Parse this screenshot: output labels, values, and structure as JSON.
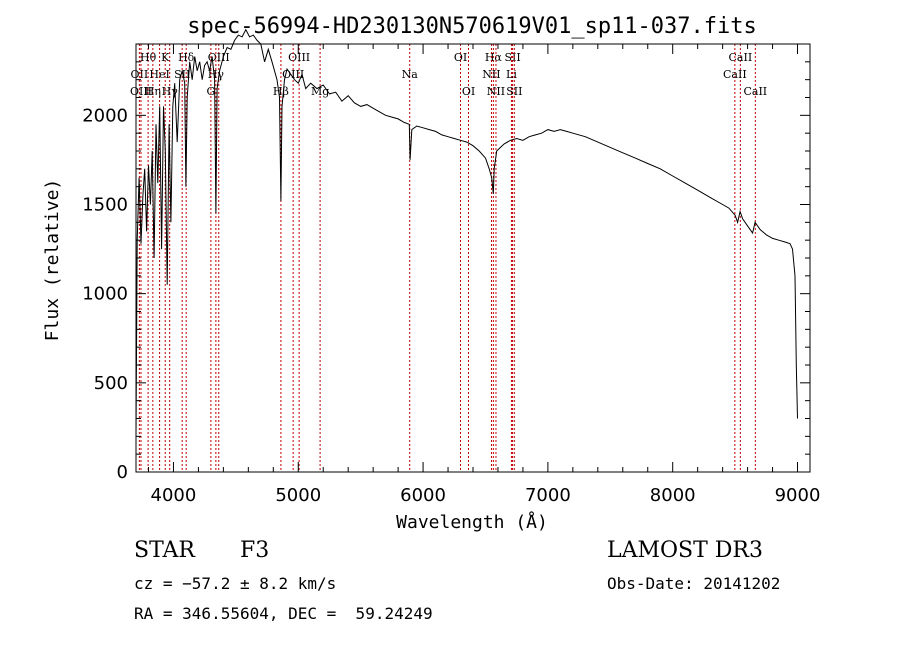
{
  "chart_data": {
    "type": "line",
    "title": "spec-56994-HD230130N570619V01_sp11-037.fits",
    "xlabel": "Wavelength (Å)",
    "ylabel": "Flux (relative)",
    "xlim": [
      3700,
      9100
    ],
    "ylim": [
      0,
      2400
    ],
    "xticks": [
      4000,
      5000,
      6000,
      7000,
      8000,
      9000
    ],
    "yticks": [
      0,
      500,
      1000,
      1500,
      2000
    ],
    "series": [
      {
        "name": "spectrum",
        "x": [
          3700,
          3710,
          3725,
          3740,
          3755,
          3770,
          3785,
          3800,
          3815,
          3830,
          3845,
          3860,
          3875,
          3890,
          3905,
          3920,
          3935,
          3950,
          3965,
          3980,
          3995,
          4010,
          4030,
          4050,
          4070,
          4090,
          4100,
          4110,
          4130,
          4150,
          4170,
          4190,
          4210,
          4230,
          4250,
          4270,
          4290,
          4310,
          4330,
          4340,
          4350,
          4370,
          4400,
          4430,
          4460,
          4490,
          4520,
          4550,
          4580,
          4610,
          4640,
          4670,
          4700,
          4730,
          4760,
          4790,
          4810,
          4830,
          4850,
          4861,
          4870,
          4890,
          4910,
          4940,
          4970,
          5000,
          5030,
          5060,
          5100,
          5150,
          5200,
          5250,
          5300,
          5350,
          5400,
          5450,
          5500,
          5550,
          5600,
          5650,
          5700,
          5750,
          5800,
          5850,
          5890,
          5896,
          5910,
          5950,
          6000,
          6050,
          6100,
          6150,
          6200,
          6250,
          6300,
          6350,
          6400,
          6450,
          6500,
          6530,
          6550,
          6563,
          6570,
          6590,
          6620,
          6650,
          6700,
          6750,
          6800,
          6850,
          6900,
          6950,
          7000,
          7050,
          7100,
          7150,
          7200,
          7300,
          7400,
          7500,
          7600,
          7700,
          7800,
          7900,
          8000,
          8100,
          8200,
          8300,
          8400,
          8450,
          8500,
          8520,
          8540,
          8560,
          8600,
          8640,
          8660,
          8700,
          8750,
          8800,
          8850,
          8900,
          8940,
          8960,
          8980,
          8990,
          9000
        ],
        "y": [
          200,
          1300,
          1650,
          1280,
          1550,
          1700,
          1350,
          1720,
          1500,
          1800,
          1200,
          1950,
          1620,
          2050,
          1250,
          2050,
          1800,
          1050,
          1950,
          1400,
          2050,
          2180,
          1850,
          2200,
          2250,
          2180,
          1600,
          2100,
          2300,
          2200,
          2330,
          2250,
          2300,
          2200,
          2280,
          2300,
          2250,
          2330,
          2200,
          1450,
          2150,
          2250,
          2330,
          2380,
          2370,
          2420,
          2450,
          2440,
          2480,
          2440,
          2450,
          2420,
          2400,
          2300,
          2370,
          2300,
          2250,
          2200,
          2100,
          1520,
          2050,
          2200,
          2260,
          2230,
          2200,
          2180,
          2230,
          2150,
          2180,
          2150,
          2170,
          2120,
          2130,
          2080,
          2110,
          2070,
          2050,
          2060,
          2040,
          2020,
          2000,
          1990,
          1980,
          1960,
          1950,
          1750,
          1920,
          1940,
          1930,
          1920,
          1910,
          1890,
          1880,
          1870,
          1860,
          1850,
          1830,
          1800,
          1760,
          1700,
          1650,
          1560,
          1700,
          1800,
          1820,
          1840,
          1860,
          1870,
          1860,
          1880,
          1890,
          1900,
          1920,
          1910,
          1920,
          1910,
          1900,
          1880,
          1850,
          1820,
          1790,
          1760,
          1730,
          1700,
          1660,
          1620,
          1580,
          1540,
          1500,
          1480,
          1440,
          1400,
          1460,
          1420,
          1380,
          1340,
          1400,
          1360,
          1330,
          1310,
          1300,
          1290,
          1280,
          1250,
          1100,
          600,
          300
        ]
      }
    ],
    "line_markers": [
      {
        "label": "Hθ",
        "x": 3797,
        "row": 0
      },
      {
        "label": "OII",
        "x": 3727,
        "row": 1
      },
      {
        "label": "OIII",
        "x": 3740,
        "row": 2
      },
      {
        "label": "K",
        "x": 3934,
        "row": 0
      },
      {
        "label": "HeI",
        "x": 3889,
        "row": 1
      },
      {
        "label": "Hη",
        "x": 3835,
        "row": 2
      },
      {
        "label": "Hδ",
        "x": 4102,
        "row": 0
      },
      {
        "label": "SII",
        "x": 4070,
        "row": 1
      },
      {
        "label": "Hγ",
        "x": 3970,
        "row": 2
      },
      {
        "label": "OIII",
        "x": 4363,
        "row": 0
      },
      {
        "label": "Hγ",
        "x": 4340,
        "row": 1
      },
      {
        "label": "G",
        "x": 4300,
        "row": 2
      },
      {
        "label": "OIII",
        "x": 5007,
        "row": 0
      },
      {
        "label": "OIII",
        "x": 4959,
        "row": 1
      },
      {
        "label": "Hβ",
        "x": 4861,
        "row": 2
      },
      {
        "label": "Mg",
        "x": 5175,
        "row": 2
      },
      {
        "label": "Na",
        "x": 5893,
        "row": 1
      },
      {
        "label": "OI",
        "x": 6300,
        "row": 0
      },
      {
        "label": "OI",
        "x": 6364,
        "row": 2
      },
      {
        "label": "Hα",
        "x": 6563,
        "row": 0
      },
      {
        "label": "SII",
        "x": 6717,
        "row": 0
      },
      {
        "label": "NII",
        "x": 6548,
        "row": 1
      },
      {
        "label": "Li",
        "x": 6708,
        "row": 1
      },
      {
        "label": "NII",
        "x": 6584,
        "row": 2
      },
      {
        "label": "SII",
        "x": 6731,
        "row": 2
      },
      {
        "label": "CaII",
        "x": 8542,
        "row": 0
      },
      {
        "label": "CaII",
        "x": 8498,
        "row": 1
      },
      {
        "label": "CaII",
        "x": 8662,
        "row": 2
      }
    ]
  },
  "info": {
    "class_label": "STAR",
    "subclass": "F3",
    "survey": "LAMOST DR3",
    "cz": "cz = −57.2 ± 8.2 km/s",
    "obs_date": "Obs-Date: 20141202",
    "coords": "RA = 346.55604, DEC =  59.24249"
  },
  "colors": {
    "axis": "#000000",
    "marker": "#c00000",
    "spectrum": "#000000"
  }
}
